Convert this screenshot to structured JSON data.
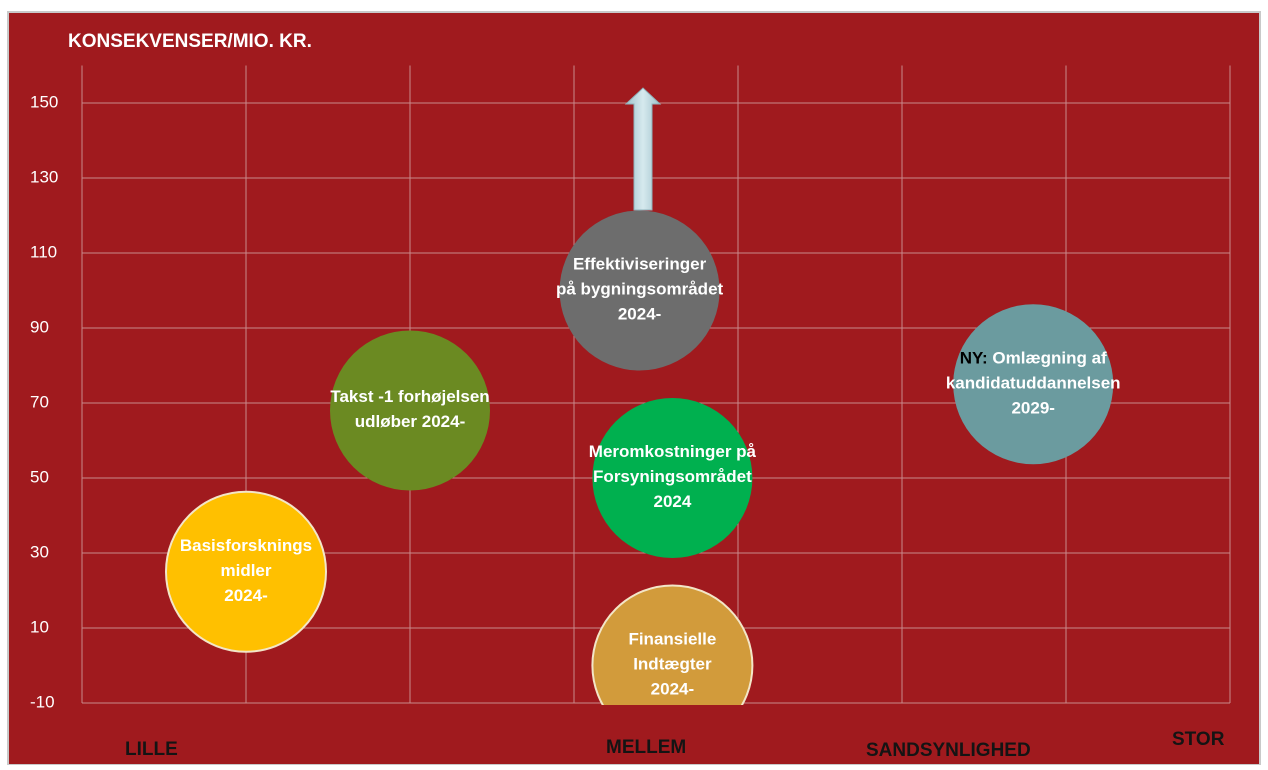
{
  "chart_data": {
    "type": "bubble",
    "title": "KONSEKVENSER/MIO. KR.",
    "x_labels": [
      "LILLE",
      "MELLEM",
      "SANDSYNLIGHED",
      "STOR"
    ],
    "xlim": [
      0,
      7
    ],
    "xticks": [
      0,
      1,
      2,
      3,
      4,
      5,
      6,
      7
    ],
    "xtick_labels": false,
    "ylim": [
      -10,
      160
    ],
    "yticks": [
      -10,
      10,
      30,
      50,
      70,
      90,
      110,
      130,
      150
    ],
    "grid": true,
    "background": "#a01a1e",
    "bubbles": [
      {
        "lines": [
          "Basisforsknings",
          "midler",
          "2024-"
        ],
        "color": "#ffc000",
        "outline": true,
        "x": 1,
        "y": 25
      },
      {
        "lines": [
          "Takst -1 forhøjelsen",
          "udløber 2024-"
        ],
        "color": "#6b8a22",
        "outline": false,
        "x": 2,
        "y": 68
      },
      {
        "lines": [
          "Effektiviseringer",
          "på bygningsområdet",
          "2024-"
        ],
        "color": "#6d6d6d",
        "outline": false,
        "x": 3.4,
        "y": 100
      },
      {
        "lines": [
          "Meromkostninger på",
          "Forsyningsområdet",
          "2024"
        ],
        "color": "#00b04f",
        "outline": false,
        "x": 3.6,
        "y": 50
      },
      {
        "lines": [
          "Finansielle",
          "Indtægter",
          "2024-"
        ],
        "color": "#d29b3b",
        "outline": true,
        "x": 3.6,
        "y": 0
      },
      {
        "prefix": "NY:",
        "lines": [
          " Omlægning af",
          "kandidatuddannelsen",
          "2029-"
        ],
        "color": "#6b9b9f",
        "outline": false,
        "x": 5.8,
        "y": 75
      }
    ]
  }
}
